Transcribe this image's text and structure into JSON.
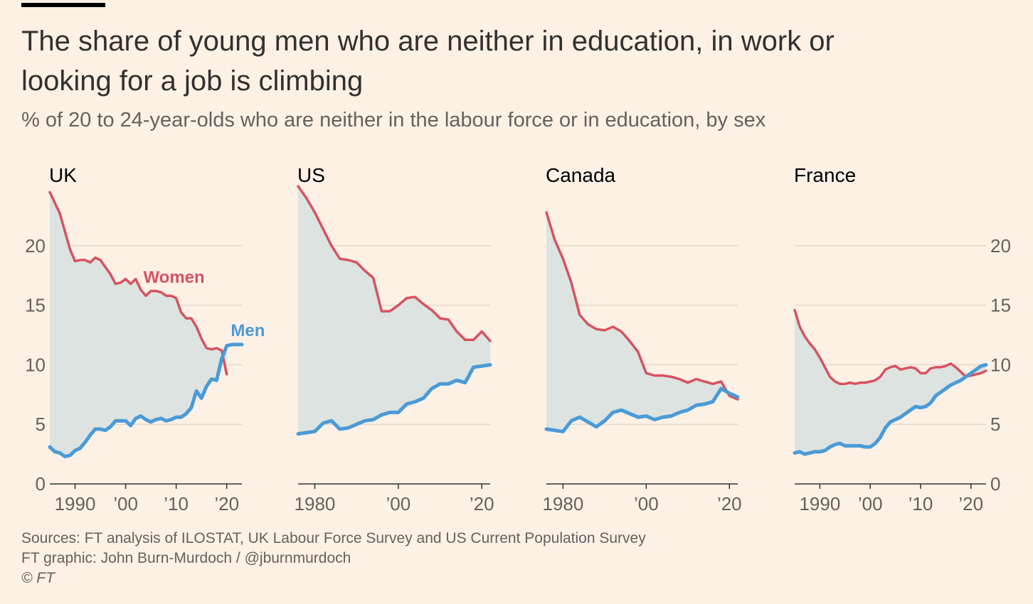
{
  "header": {
    "title": "The share of young men who are neither in education, in work or looking for a job is climbing",
    "subtitle": "% of 20 to 24-year-olds who are neither in the labour force or in education, by sex"
  },
  "footer": {
    "sources": "Sources: FT analysis of ILOSTAT, UK Labour Force Survey and US Current Population Survey",
    "graphic": "FT graphic: John Burn-Murdoch / @jburnmurdoch",
    "copyright": "© FT"
  },
  "colors": {
    "women": "#D7525F",
    "men": "#4A9BD6",
    "fill": "#DCE3E1",
    "grid": "#E4D8CC",
    "axis": "#33302E",
    "tick_text": "#66605C",
    "background": "#FDF1E6"
  },
  "chart_data": [
    {
      "type": "line",
      "title": "UK",
      "xlim": [
        1985,
        2023
      ],
      "ylim": [
        0,
        25
      ],
      "y_ticks": [
        0,
        5,
        10,
        15,
        20
      ],
      "y_tick_labels": [
        "0",
        "5",
        "10",
        "15",
        "20"
      ],
      "y_axis_side": "left",
      "x_ticks": [
        1990,
        2000,
        2010,
        2020
      ],
      "x_tick_labels": [
        "1990",
        "’00",
        "’10",
        "’20"
      ],
      "annotations": [
        "Women",
        "Men"
      ],
      "series": [
        {
          "name": "Women",
          "x": [
            1985,
            1986,
            1987,
            1988,
            1989,
            1990,
            1991,
            1992,
            1993,
            1994,
            1995,
            1996,
            1997,
            1998,
            1999,
            2000,
            2001,
            2002,
            2003,
            2004,
            2005,
            2006,
            2007,
            2008,
            2009,
            2010,
            2011,
            2012,
            2013,
            2014,
            2015,
            2016,
            2017,
            2018,
            2019,
            2020
          ],
          "values": [
            24.5,
            23.6,
            22.7,
            21.2,
            19.7,
            18.7,
            18.8,
            18.8,
            18.6,
            19.0,
            18.8,
            18.2,
            17.6,
            16.8,
            16.9,
            17.2,
            16.8,
            17.2,
            16.3,
            15.8,
            16.2,
            16.2,
            16.1,
            15.8,
            15.8,
            15.6,
            14.4,
            13.9,
            13.9,
            13.2,
            12.2,
            11.4,
            11.3,
            11.4,
            11.2,
            9.2
          ]
        },
        {
          "name": "Men",
          "x": [
            1985,
            1986,
            1987,
            1988,
            1989,
            1990,
            1991,
            1992,
            1993,
            1994,
            1995,
            1996,
            1997,
            1998,
            1999,
            2000,
            2001,
            2002,
            2003,
            2004,
            2005,
            2006,
            2007,
            2008,
            2009,
            2010,
            2011,
            2012,
            2013,
            2014,
            2015,
            2016,
            2017,
            2018,
            2019,
            2020,
            2021,
            2022,
            2023
          ],
          "values": [
            3.1,
            2.7,
            2.6,
            2.3,
            2.4,
            2.8,
            3.0,
            3.5,
            4.1,
            4.6,
            4.6,
            4.5,
            4.8,
            5.3,
            5.3,
            5.3,
            4.9,
            5.5,
            5.7,
            5.4,
            5.2,
            5.4,
            5.5,
            5.3,
            5.4,
            5.6,
            5.6,
            5.9,
            6.4,
            7.8,
            7.2,
            8.2,
            8.8,
            8.7,
            10.5,
            11.6,
            11.7,
            11.7,
            11.7
          ]
        }
      ]
    },
    {
      "type": "line",
      "title": "US",
      "xlim": [
        1976,
        2022
      ],
      "ylim": [
        0,
        25
      ],
      "y_ticks": [
        0,
        5,
        10,
        15,
        20
      ],
      "y_axis_side": "none",
      "x_ticks": [
        1980,
        2000,
        2020
      ],
      "x_tick_labels": [
        "1980",
        "’00",
        "’20"
      ],
      "series": [
        {
          "name": "Women",
          "x": [
            1976,
            1978,
            1980,
            1982,
            1984,
            1986,
            1988,
            1990,
            1992,
            1994,
            1996,
            1998,
            2000,
            2002,
            2004,
            2006,
            2008,
            2010,
            2012,
            2014,
            2016,
            2018,
            2020,
            2022
          ],
          "values": [
            25.0,
            24.0,
            22.8,
            21.4,
            20.0,
            18.9,
            18.8,
            18.6,
            17.9,
            17.3,
            14.5,
            14.5,
            15.0,
            15.6,
            15.7,
            15.1,
            14.6,
            13.9,
            13.8,
            12.8,
            12.1,
            12.1,
            12.8,
            12.0
          ]
        },
        {
          "name": "Men",
          "x": [
            1976,
            1978,
            1980,
            1982,
            1984,
            1986,
            1988,
            1990,
            1992,
            1994,
            1996,
            1998,
            2000,
            2002,
            2004,
            2006,
            2008,
            2010,
            2012,
            2014,
            2016,
            2018,
            2020,
            2022
          ],
          "values": [
            4.2,
            4.3,
            4.4,
            5.1,
            5.3,
            4.6,
            4.7,
            5.0,
            5.3,
            5.4,
            5.8,
            6.0,
            6.0,
            6.7,
            6.9,
            7.2,
            8.0,
            8.4,
            8.4,
            8.7,
            8.5,
            9.8,
            9.9,
            10.0
          ]
        }
      ]
    },
    {
      "type": "line",
      "title": "Canada",
      "xlim": [
        1976,
        2022
      ],
      "ylim": [
        0,
        25
      ],
      "y_ticks": [
        0,
        5,
        10,
        15,
        20
      ],
      "y_axis_side": "none",
      "x_ticks": [
        1980,
        2000,
        2020
      ],
      "x_tick_labels": [
        "1980",
        "’00",
        "’20"
      ],
      "series": [
        {
          "name": "Women",
          "x": [
            1976,
            1978,
            1980,
            1982,
            1984,
            1986,
            1988,
            1990,
            1992,
            1994,
            1996,
            1998,
            2000,
            2002,
            2004,
            2006,
            2008,
            2010,
            2012,
            2014,
            2016,
            2018,
            2020,
            2022
          ],
          "values": [
            22.8,
            20.5,
            18.9,
            16.9,
            14.2,
            13.4,
            13.0,
            12.9,
            13.2,
            12.8,
            12.0,
            11.1,
            9.3,
            9.1,
            9.1,
            9.0,
            8.8,
            8.5,
            8.8,
            8.6,
            8.4,
            8.6,
            7.4,
            7.1
          ]
        },
        {
          "name": "Men",
          "x": [
            1976,
            1978,
            1980,
            1982,
            1984,
            1986,
            1988,
            1990,
            1992,
            1994,
            1996,
            1998,
            2000,
            2002,
            2004,
            2006,
            2008,
            2010,
            2012,
            2014,
            2016,
            2018,
            2020,
            2022
          ],
          "values": [
            4.6,
            4.5,
            4.4,
            5.3,
            5.6,
            5.2,
            4.8,
            5.3,
            6.0,
            6.2,
            5.9,
            5.6,
            5.7,
            5.4,
            5.6,
            5.7,
            6.0,
            6.2,
            6.6,
            6.7,
            6.9,
            8.0,
            7.6,
            7.3
          ]
        }
      ]
    },
    {
      "type": "line",
      "title": "France",
      "xlim": [
        1985,
        2023
      ],
      "ylim": [
        0,
        25
      ],
      "y_ticks": [
        0,
        5,
        10,
        15,
        20
      ],
      "y_tick_labels": [
        "0",
        "5",
        "10",
        "15",
        "20"
      ],
      "y_axis_side": "right",
      "x_ticks": [
        1990,
        2000,
        2010,
        2020
      ],
      "x_tick_labels": [
        "1990",
        "’00",
        "’10",
        "’20"
      ],
      "series": [
        {
          "name": "Women",
          "x": [
            1985,
            1986,
            1987,
            1988,
            1989,
            1990,
            1991,
            1992,
            1993,
            1994,
            1995,
            1996,
            1997,
            1998,
            1999,
            2000,
            2001,
            2002,
            2003,
            2004,
            2005,
            2006,
            2007,
            2008,
            2009,
            2010,
            2011,
            2012,
            2013,
            2014,
            2015,
            2016,
            2017,
            2018,
            2019,
            2020,
            2021,
            2022,
            2023
          ],
          "values": [
            14.6,
            13.2,
            12.4,
            11.8,
            11.3,
            10.6,
            9.8,
            9.0,
            8.6,
            8.4,
            8.4,
            8.5,
            8.4,
            8.5,
            8.5,
            8.6,
            8.7,
            9.0,
            9.6,
            9.8,
            9.9,
            9.6,
            9.7,
            9.8,
            9.7,
            9.3,
            9.3,
            9.7,
            9.8,
            9.8,
            9.9,
            10.1,
            9.8,
            9.4,
            9.0,
            9.1,
            9.2,
            9.3,
            9.5
          ]
        },
        {
          "name": "Men",
          "x": [
            1985,
            1986,
            1987,
            1988,
            1989,
            1990,
            1991,
            1992,
            1993,
            1994,
            1995,
            1996,
            1997,
            1998,
            1999,
            2000,
            2001,
            2002,
            2003,
            2004,
            2005,
            2006,
            2007,
            2008,
            2009,
            2010,
            2011,
            2012,
            2013,
            2014,
            2015,
            2016,
            2017,
            2018,
            2019,
            2020,
            2021,
            2022,
            2023
          ],
          "values": [
            2.6,
            2.7,
            2.5,
            2.6,
            2.7,
            2.7,
            2.8,
            3.1,
            3.3,
            3.4,
            3.2,
            3.2,
            3.2,
            3.2,
            3.1,
            3.1,
            3.4,
            3.9,
            4.7,
            5.2,
            5.4,
            5.6,
            5.9,
            6.2,
            6.5,
            6.4,
            6.5,
            6.8,
            7.4,
            7.7,
            8.0,
            8.3,
            8.5,
            8.7,
            9.0,
            9.3,
            9.6,
            9.9,
            10.0
          ]
        }
      ]
    }
  ]
}
